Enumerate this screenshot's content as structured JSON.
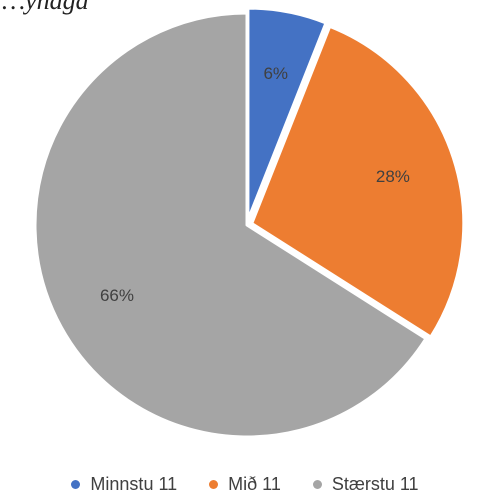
{
  "chart_data": {
    "type": "pie",
    "title": "…ynaga",
    "categories": [
      "Minnstu 11",
      "Mið 11",
      "Stærstu 11"
    ],
    "values": [
      6,
      28,
      66
    ],
    "labels": [
      "6%",
      "28%",
      "66%"
    ],
    "colors": [
      "#4472C4",
      "#ED7D31",
      "#A5A5A5"
    ],
    "legend_position": "bottom",
    "start_angle": "12 o'clock",
    "direction": "clockwise"
  }
}
